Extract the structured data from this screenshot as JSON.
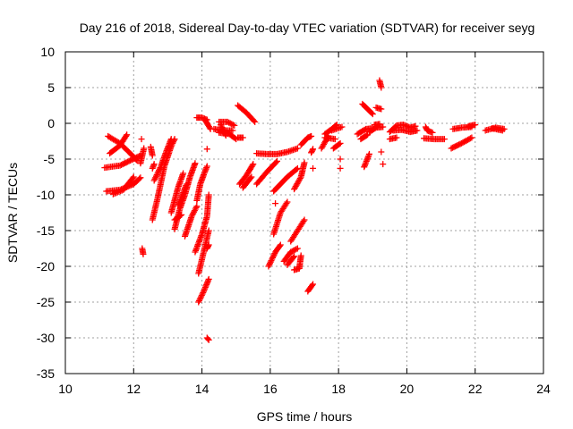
{
  "chart_data": {
    "type": "scatter",
    "title": "Day 216 of 2018, Sidereal Day-to-day VTEC variation (SDTVAR) for receiver seyg",
    "xlabel": "GPS time / hours",
    "ylabel": "SDTVAR / TECUs",
    "xlim": [
      10,
      24
    ],
    "ylim": [
      -35,
      10
    ],
    "xticks": [
      10,
      12,
      14,
      16,
      18,
      20,
      22,
      24
    ],
    "yticks": [
      -35,
      -30,
      -25,
      -20,
      -15,
      -10,
      -5,
      0,
      5,
      10
    ],
    "grid": true,
    "marker": "+",
    "color": "#ff0000",
    "segments": [
      [
        [
          11.15,
          -6.2
        ],
        [
          11.6,
          -5.9
        ],
        [
          11.9,
          -5.2
        ],
        [
          12.2,
          -4.5
        ]
      ],
      [
        [
          11.2,
          -9.5
        ],
        [
          11.6,
          -9.3
        ],
        [
          12.0,
          -8.5
        ],
        [
          12.2,
          -7.6
        ]
      ],
      [
        [
          11.25,
          -1.8
        ],
        [
          11.6,
          -2.8
        ],
        [
          11.9,
          -4.2
        ],
        [
          12.1,
          -5.2
        ]
      ],
      [
        [
          11.3,
          -4.2
        ],
        [
          11.6,
          -3.1
        ],
        [
          11.8,
          -1.6
        ]
      ],
      [
        [
          11.4,
          -9.9
        ],
        [
          11.7,
          -9.3
        ],
        [
          12.0,
          -7.5
        ]
      ],
      [
        [
          12.2,
          -5.6
        ],
        [
          12.3,
          -3.5
        ]
      ],
      [
        [
          12.23,
          -2.2
        ]
      ],
      [
        [
          12.25,
          -17.5
        ],
        [
          12.28,
          -18.3
        ]
      ],
      [
        [
          12.5,
          -3.3
        ],
        [
          12.55,
          -4.5
        ]
      ],
      [
        [
          12.55,
          -13.5
        ],
        [
          12.7,
          -10.5
        ],
        [
          12.9,
          -6.0
        ],
        [
          13.1,
          -3.2
        ],
        [
          13.2,
          -2.2
        ]
      ],
      [
        [
          12.6,
          -8.0
        ],
        [
          12.8,
          -6.0
        ],
        [
          12.95,
          -4.0
        ],
        [
          13.1,
          -2.2
        ]
      ],
      [
        [
          12.55,
          -6.3
        ],
        [
          12.6,
          -5.7
        ]
      ],
      [
        [
          13.2,
          -14.8
        ],
        [
          13.35,
          -12.0
        ],
        [
          13.5,
          -10.0
        ],
        [
          13.65,
          -7.5
        ],
        [
          13.8,
          -5.6
        ]
      ],
      [
        [
          13.1,
          -12.5
        ],
        [
          13.3,
          -9.0
        ],
        [
          13.45,
          -7.0
        ]
      ],
      [
        [
          13.3,
          -11.5
        ],
        [
          13.55,
          -8.5
        ]
      ],
      [
        [
          13.5,
          -15.8
        ],
        [
          13.7,
          -13.0
        ],
        [
          13.85,
          -11.6
        ]
      ],
      [
        [
          13.2,
          -13.5
        ],
        [
          13.4,
          -12.8
        ]
      ],
      [
        [
          13.85,
          -10.8
        ],
        [
          13.95,
          -8.5
        ],
        [
          14.05,
          -7.2
        ],
        [
          14.15,
          -6.0
        ]
      ],
      [
        [
          13.8,
          -18.0
        ],
        [
          14.0,
          -15.5
        ],
        [
          14.15,
          -13.0
        ],
        [
          14.2,
          -10.0
        ]
      ],
      [
        [
          13.9,
          -25.0
        ],
        [
          14.05,
          -23.5
        ],
        [
          14.2,
          -21.8
        ]
      ],
      [
        [
          13.9,
          -21.0
        ],
        [
          14.05,
          -18.0
        ],
        [
          14.2,
          -15.0
        ]
      ],
      [
        [
          14.15,
          -30.0
        ],
        [
          14.2,
          -30.3
        ]
      ],
      [
        [
          14.15,
          -17.5
        ],
        [
          14.2,
          -17.0
        ]
      ],
      [
        [
          13.85,
          0.8
        ],
        [
          14.0,
          0.8
        ],
        [
          14.15,
          0.5
        ]
      ],
      [
        [
          14.1,
          0.4
        ],
        [
          14.25,
          -0.8
        ]
      ],
      [
        [
          14.15,
          -3.6
        ]
      ],
      [
        [
          14.35,
          -0.8
        ],
        [
          14.6,
          -1.0
        ],
        [
          14.9,
          -1.0
        ]
      ],
      [
        [
          14.5,
          0.2
        ],
        [
          14.75,
          0.2
        ],
        [
          14.95,
          -0.3
        ]
      ],
      [
        [
          14.5,
          -1.3
        ],
        [
          14.8,
          -1.5
        ],
        [
          15.0,
          -2.2
        ]
      ],
      [
        [
          14.55,
          -0.2
        ],
        [
          14.7,
          -1.7
        ]
      ],
      [
        [
          15.05,
          2.5
        ],
        [
          15.3,
          1.5
        ],
        [
          15.55,
          0.2
        ]
      ],
      [
        [
          15.05,
          -2.0
        ],
        [
          15.2,
          -2.0
        ]
      ],
      [
        [
          15.1,
          -8.5
        ],
        [
          15.3,
          -7.3
        ],
        [
          15.5,
          -5.7
        ]
      ],
      [
        [
          15.2,
          -9.0
        ],
        [
          15.45,
          -7.5
        ]
      ],
      [
        [
          15.6,
          -4.2
        ],
        [
          15.9,
          -4.3
        ],
        [
          16.2,
          -4.3
        ],
        [
          16.5,
          -4.0
        ],
        [
          16.8,
          -3.5
        ]
      ],
      [
        [
          15.6,
          -8.5
        ],
        [
          15.9,
          -6.8
        ],
        [
          16.2,
          -5.3
        ]
      ],
      [
        [
          15.95,
          -20.0
        ],
        [
          16.15,
          -18.0
        ],
        [
          16.3,
          -17.0
        ]
      ],
      [
        [
          16.1,
          -15.5
        ],
        [
          16.3,
          -12.5
        ],
        [
          16.5,
          -11.0
        ]
      ],
      [
        [
          16.15,
          -11.2
        ]
      ],
      [
        [
          16.1,
          -9.5
        ],
        [
          16.3,
          -8.5
        ],
        [
          16.5,
          -7.5
        ],
        [
          16.8,
          -6.3
        ]
      ],
      [
        [
          16.4,
          -19.3
        ],
        [
          16.6,
          -18.0
        ],
        [
          16.8,
          -17.5
        ]
      ],
      [
        [
          16.5,
          -19.8
        ],
        [
          16.7,
          -18.6
        ]
      ],
      [
        [
          16.7,
          -20.5
        ],
        [
          16.85,
          -20.3
        ],
        [
          16.9,
          -18.5
        ]
      ],
      [
        [
          16.6,
          -16.5
        ],
        [
          16.8,
          -15.0
        ],
        [
          17.0,
          -13.5
        ]
      ],
      [
        [
          16.7,
          -9.2
        ],
        [
          16.9,
          -7.5
        ],
        [
          17.0,
          -5.5
        ]
      ],
      [
        [
          16.9,
          -3.0
        ],
        [
          17.1,
          -2.0
        ],
        [
          17.2,
          -1.8
        ]
      ],
      [
        [
          17.2,
          -4.1
        ],
        [
          17.25,
          -3.6
        ]
      ],
      [
        [
          17.25,
          -6.3
        ]
      ],
      [
        [
          17.1,
          -23.5
        ],
        [
          17.25,
          -22.5
        ]
      ],
      [
        [
          17.5,
          -3.5
        ],
        [
          17.7,
          -1.8
        ]
      ],
      [
        [
          17.6,
          -1.5
        ],
        [
          17.8,
          -0.8
        ],
        [
          17.95,
          -0.2
        ]
      ],
      [
        [
          17.6,
          -2.0
        ],
        [
          17.9,
          -2.2
        ]
      ],
      [
        [
          17.8,
          -1.0
        ],
        [
          18.1,
          -0.5
        ]
      ],
      [
        [
          17.85,
          -3.5
        ],
        [
          18.05,
          -2.8
        ]
      ],
      [
        [
          18.05,
          -5.0
        ]
      ],
      [
        [
          18.05,
          -6.3
        ]
      ],
      [
        [
          18.55,
          -1.5
        ],
        [
          18.8,
          -0.8
        ],
        [
          19.0,
          -0.7
        ]
      ],
      [
        [
          18.65,
          -2.2
        ],
        [
          18.85,
          -1.6
        ]
      ],
      [
        [
          18.7,
          2.7
        ],
        [
          18.85,
          2.0
        ],
        [
          19.0,
          1.3
        ]
      ],
      [
        [
          18.75,
          -6.1
        ],
        [
          18.9,
          -4.3
        ]
      ],
      [
        [
          18.9,
          -1.2
        ],
        [
          19.1,
          -0.6
        ],
        [
          19.3,
          -0.5
        ]
      ],
      [
        [
          19.05,
          -0.2
        ],
        [
          19.2,
          -0.1
        ]
      ],
      [
        [
          19.1,
          2.2
        ],
        [
          19.25,
          2.0
        ]
      ],
      [
        [
          19.2,
          6.0
        ],
        [
          19.25,
          5.0
        ]
      ],
      [
        [
          19.25,
          -4.0
        ]
      ],
      [
        [
          19.3,
          -5.7
        ]
      ],
      [
        [
          19.5,
          -1.2
        ],
        [
          19.7,
          -0.3
        ],
        [
          19.9,
          -0.2
        ],
        [
          20.1,
          -0.6
        ],
        [
          20.25,
          -0.4
        ]
      ],
      [
        [
          19.6,
          -1.0
        ],
        [
          19.85,
          -0.9
        ],
        [
          20.1,
          -1.2
        ],
        [
          20.3,
          -1.0
        ]
      ],
      [
        [
          19.5,
          -2.2
        ],
        [
          19.7,
          -2.0
        ]
      ],
      [
        [
          20.55,
          -0.5
        ],
        [
          20.6,
          -1.0
        ],
        [
          20.75,
          -1.3
        ]
      ],
      [
        [
          20.5,
          -2.1
        ],
        [
          20.8,
          -2.2
        ],
        [
          21.1,
          -2.2
        ]
      ],
      [
        [
          21.3,
          -3.5
        ],
        [
          21.6,
          -2.8
        ],
        [
          21.9,
          -2.0
        ]
      ],
      [
        [
          21.35,
          -0.8
        ],
        [
          21.6,
          -0.6
        ],
        [
          21.9,
          -0.5
        ]
      ],
      [
        [
          21.8,
          -0.4
        ],
        [
          22.0,
          -0.2
        ]
      ],
      [
        [
          22.3,
          -1.0
        ],
        [
          22.6,
          -0.6
        ],
        [
          22.85,
          -0.8
        ]
      ],
      [
        [
          22.5,
          -0.7
        ],
        [
          22.8,
          -1.0
        ]
      ]
    ]
  }
}
